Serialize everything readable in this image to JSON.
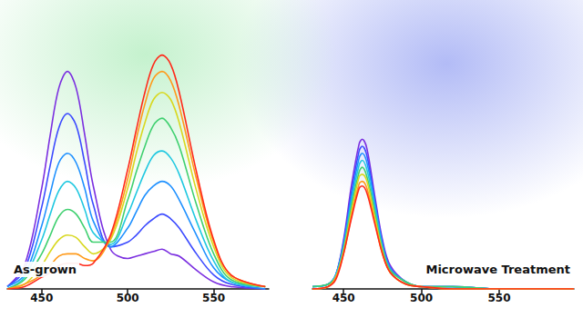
{
  "chart_data": [
    {
      "type": "line",
      "annotation": "As-grown",
      "x": [
        430,
        440,
        450,
        455,
        460,
        465,
        470,
        475,
        480,
        490,
        500,
        505,
        510,
        515,
        520,
        525,
        530,
        540,
        550,
        560,
        580
      ],
      "series": [
        {
          "color": "#7b2fe0",
          "values": [
            0.01,
            0.1,
            0.43,
            0.66,
            0.86,
            0.93,
            0.86,
            0.66,
            0.44,
            0.17,
            0.13,
            0.14,
            0.15,
            0.16,
            0.17,
            0.15,
            0.14,
            0.08,
            0.03,
            0.01,
            0
          ]
        },
        {
          "color": "#3c4bff",
          "values": [
            0.01,
            0.08,
            0.35,
            0.53,
            0.69,
            0.75,
            0.7,
            0.54,
            0.36,
            0.18,
            0.2,
            0.23,
            0.27,
            0.3,
            0.32,
            0.3,
            0.26,
            0.15,
            0.06,
            0.02,
            0
          ]
        },
        {
          "color": "#1e90ff",
          "values": [
            0.01,
            0.06,
            0.27,
            0.41,
            0.54,
            0.58,
            0.54,
            0.43,
            0.29,
            0.18,
            0.26,
            0.33,
            0.4,
            0.44,
            0.46,
            0.44,
            0.38,
            0.23,
            0.09,
            0.03,
            0
          ]
        },
        {
          "color": "#20c8e0",
          "values": [
            0,
            0.05,
            0.21,
            0.32,
            0.42,
            0.46,
            0.43,
            0.34,
            0.24,
            0.19,
            0.32,
            0.41,
            0.5,
            0.57,
            0.59,
            0.56,
            0.49,
            0.29,
            0.12,
            0.03,
            0.01
          ]
        },
        {
          "color": "#40d070",
          "values": [
            0,
            0.04,
            0.15,
            0.23,
            0.31,
            0.34,
            0.32,
            0.26,
            0.2,
            0.2,
            0.38,
            0.5,
            0.61,
            0.7,
            0.73,
            0.69,
            0.61,
            0.36,
            0.15,
            0.04,
            0.01
          ]
        },
        {
          "color": "#d8d820",
          "values": [
            0,
            0.02,
            0.1,
            0.16,
            0.21,
            0.23,
            0.22,
            0.18,
            0.15,
            0.21,
            0.43,
            0.58,
            0.71,
            0.81,
            0.84,
            0.81,
            0.71,
            0.42,
            0.18,
            0.05,
            0.01
          ]
        },
        {
          "color": "#ff9a1a",
          "values": [
            0,
            0.02,
            0.06,
            0.1,
            0.14,
            0.15,
            0.15,
            0.13,
            0.12,
            0.22,
            0.47,
            0.64,
            0.79,
            0.9,
            0.93,
            0.89,
            0.78,
            0.47,
            0.2,
            0.06,
            0.01
          ]
        },
        {
          "color": "#ff2a1a",
          "values": [
            0,
            0.01,
            0.05,
            0.07,
            0.1,
            0.11,
            0.11,
            0.1,
            0.11,
            0.23,
            0.51,
            0.68,
            0.84,
            0.96,
            1.0,
            0.96,
            0.84,
            0.5,
            0.21,
            0.06,
            0.01
          ]
        }
      ],
      "xlim": [
        430,
        582
      ],
      "xticks": [
        450,
        500,
        550
      ],
      "ylim": [
        0,
        1.08
      ],
      "tick_labels": "x",
      "grid": false,
      "marker": "none"
    },
    {
      "type": "line",
      "annotation": "Microwave Treatment",
      "x": [
        430,
        440,
        445,
        450,
        455,
        460,
        462,
        465,
        470,
        475,
        480,
        490,
        500,
        520,
        550,
        598
      ],
      "series": [
        {
          "color": "#7b2fe0",
          "values": [
            0.01,
            0.02,
            0.06,
            0.21,
            0.44,
            0.62,
            0.64,
            0.6,
            0.4,
            0.21,
            0.1,
            0.03,
            0.01,
            0.01,
            0,
            0
          ]
        },
        {
          "color": "#3c4bff",
          "values": [
            0.01,
            0.02,
            0.06,
            0.2,
            0.41,
            0.59,
            0.61,
            0.57,
            0.38,
            0.2,
            0.09,
            0.03,
            0.01,
            0.01,
            0,
            0
          ]
        },
        {
          "color": "#1e90ff",
          "values": [
            0.01,
            0.02,
            0.06,
            0.19,
            0.39,
            0.56,
            0.58,
            0.54,
            0.37,
            0.19,
            0.09,
            0.03,
            0.01,
            0.01,
            0,
            0
          ]
        },
        {
          "color": "#20c8e0",
          "values": [
            0.01,
            0.02,
            0.06,
            0.18,
            0.37,
            0.53,
            0.55,
            0.51,
            0.35,
            0.18,
            0.08,
            0.03,
            0.01,
            0.01,
            0,
            0
          ]
        },
        {
          "color": "#40d070",
          "values": [
            0.01,
            0.02,
            0.05,
            0.17,
            0.35,
            0.5,
            0.52,
            0.48,
            0.33,
            0.17,
            0.08,
            0.03,
            0.01,
            0.01,
            0,
            0
          ]
        },
        {
          "color": "#d8d820",
          "values": [
            0,
            0.01,
            0.05,
            0.16,
            0.33,
            0.48,
            0.49,
            0.46,
            0.31,
            0.16,
            0.07,
            0.02,
            0.01,
            0,
            0,
            0
          ]
        },
        {
          "color": "#ff9a1a",
          "values": [
            0,
            0.01,
            0.05,
            0.15,
            0.31,
            0.45,
            0.46,
            0.43,
            0.29,
            0.15,
            0.07,
            0.02,
            0.01,
            0,
            0,
            0
          ]
        },
        {
          "color": "#ff2a1a",
          "values": [
            0,
            0.01,
            0.04,
            0.15,
            0.3,
            0.43,
            0.44,
            0.41,
            0.28,
            0.15,
            0.07,
            0.02,
            0.01,
            0,
            0,
            0
          ]
        }
      ],
      "xlim": [
        430,
        598
      ],
      "xticks": [
        450,
        500,
        550
      ],
      "ylim": [
        0,
        1.08
      ],
      "tick_labels": "x",
      "grid": false,
      "marker": "none"
    }
  ]
}
